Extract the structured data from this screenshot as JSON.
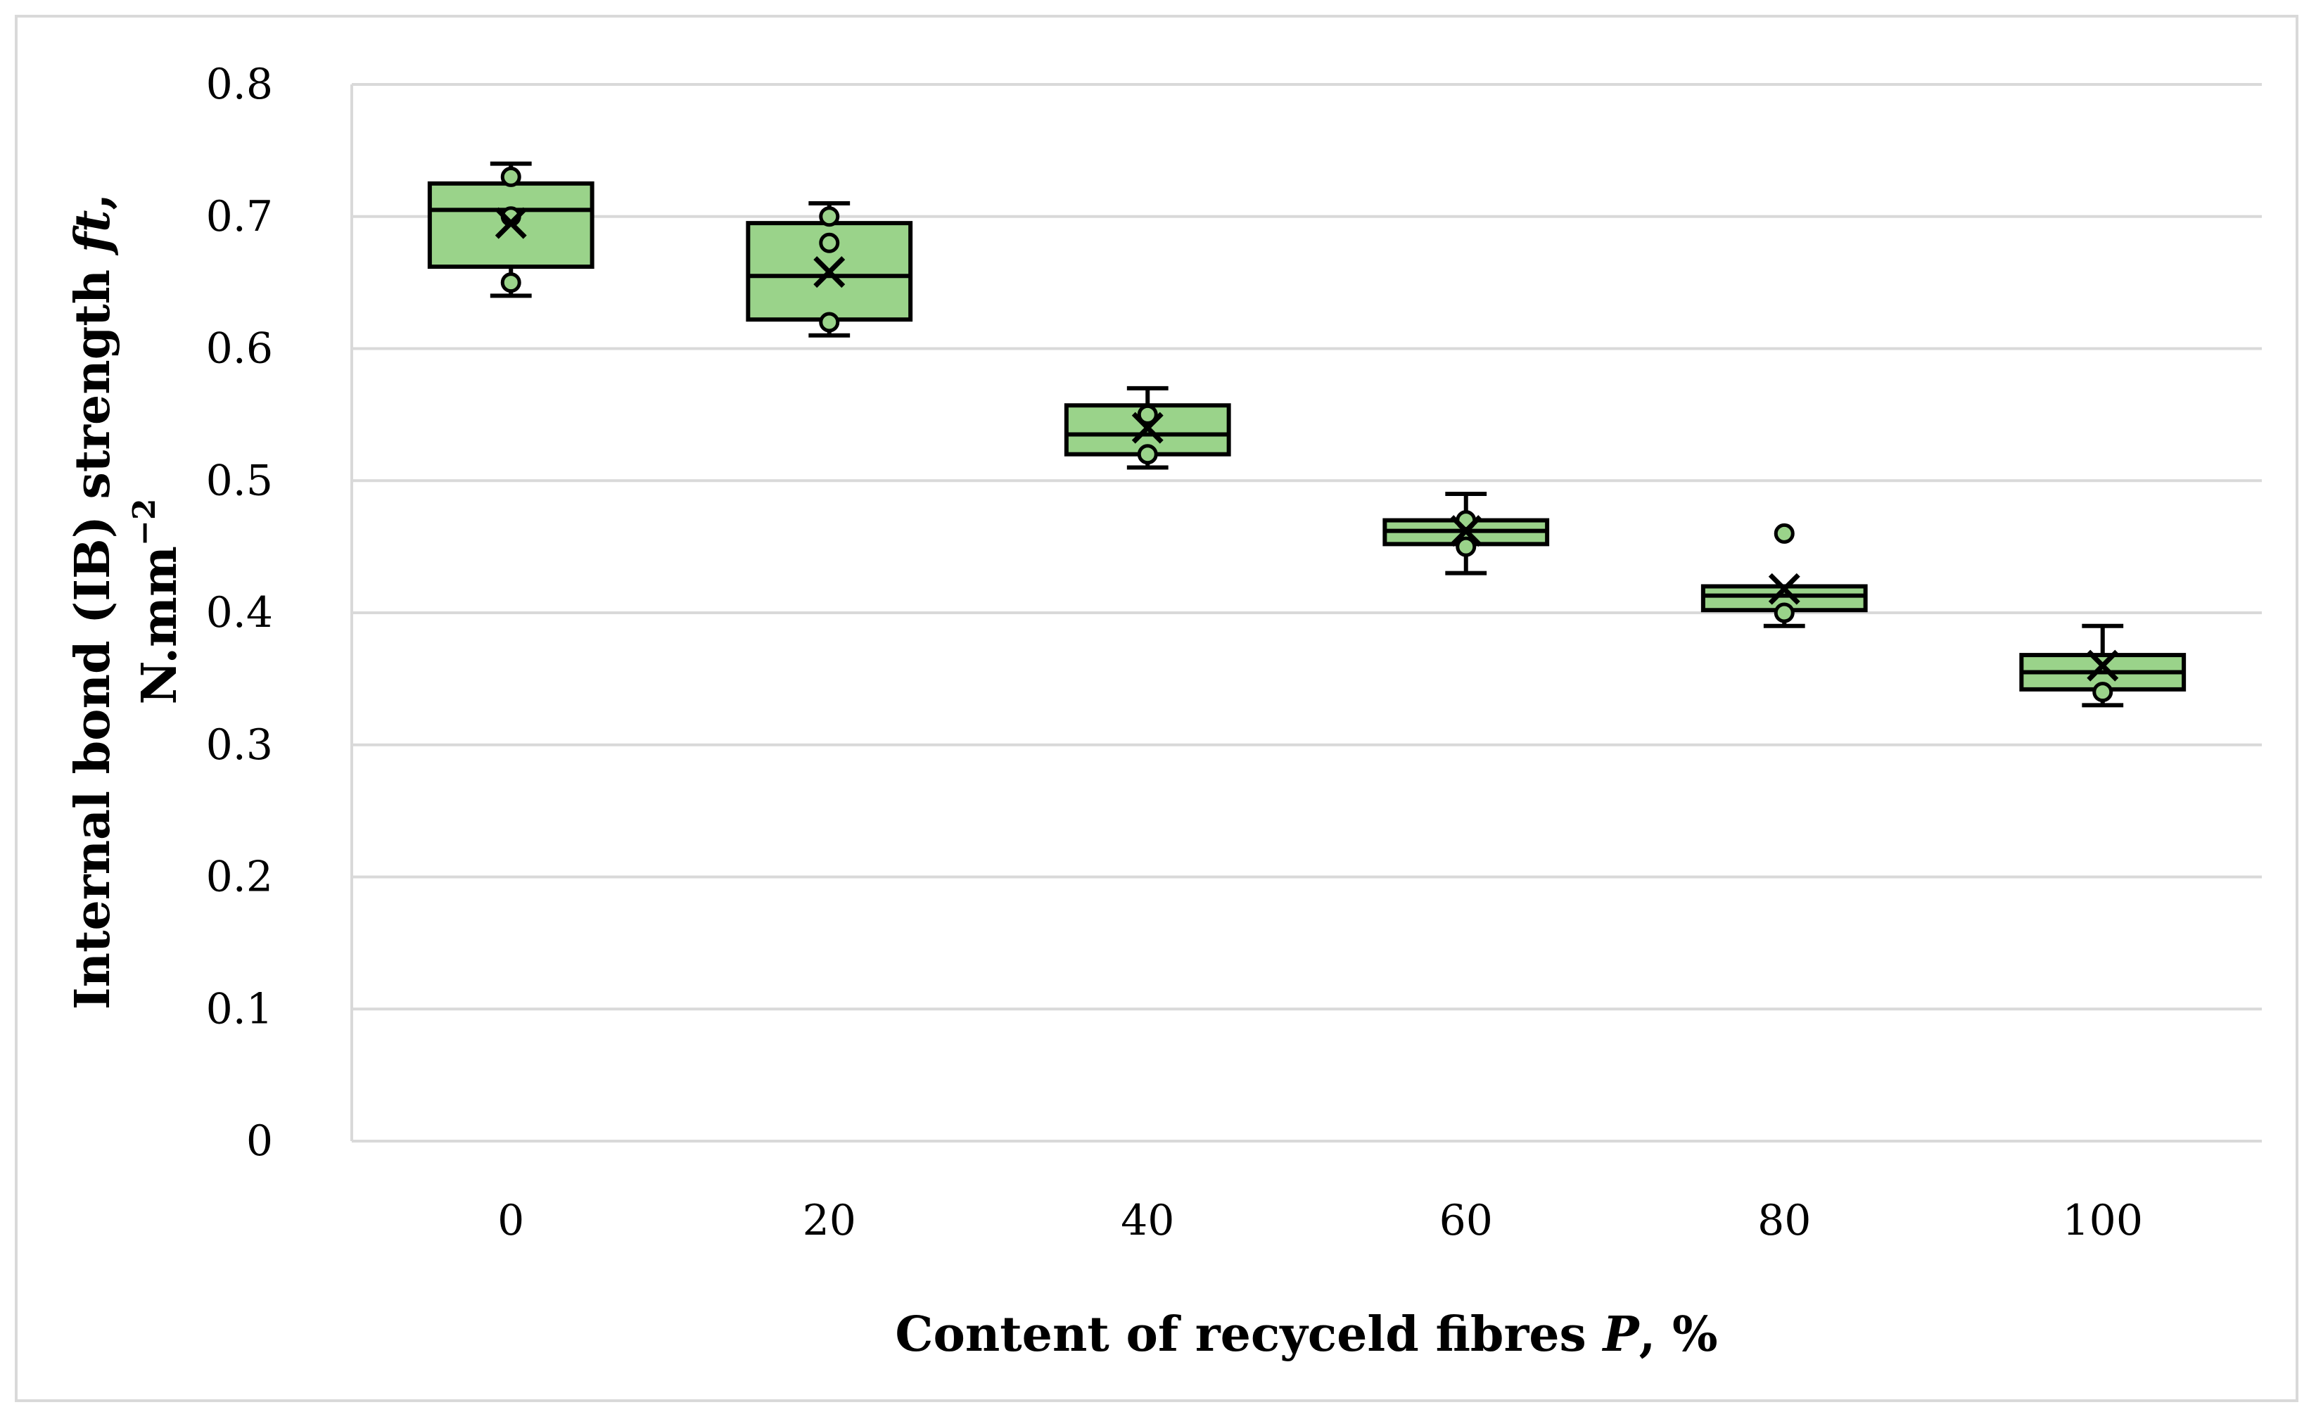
{
  "chart_data": {
    "type": "box",
    "xlabel_main": "Content of recyceld fibres ",
    "xlabel_var": "P",
    "xlabel_unit": ", %",
    "ylabel_line1_main": "Internal bond (IB) strength ",
    "ylabel_line1_var": "ft",
    "ylabel_line1_tail": ",",
    "ylabel_line2_main": "N.mm",
    "ylabel_line2_sup": "−2",
    "ylim": [
      0,
      0.8
    ],
    "yticks": [
      "0",
      "0.1",
      "0.2",
      "0.3",
      "0.4",
      "0.5",
      "0.6",
      "0.7",
      "0.8"
    ],
    "categories": [
      "0",
      "20",
      "40",
      "60",
      "80",
      "100"
    ],
    "grid": true,
    "box_fill": "#9ad38a",
    "box_stroke": "#000000",
    "boxes": [
      {
        "category": "0",
        "min": 0.64,
        "q1": 0.662,
        "median": 0.705,
        "q3": 0.725,
        "max": 0.74,
        "mean": 0.695,
        "points": [
          0.65,
          0.7,
          0.73
        ]
      },
      {
        "category": "20",
        "min": 0.61,
        "q1": 0.622,
        "median": 0.655,
        "q3": 0.695,
        "max": 0.71,
        "mean": 0.658,
        "points": [
          0.62,
          0.68,
          0.7
        ]
      },
      {
        "category": "40",
        "min": 0.51,
        "q1": 0.52,
        "median": 0.535,
        "q3": 0.557,
        "max": 0.57,
        "mean": 0.54,
        "points": [
          0.52,
          0.55
        ]
      },
      {
        "category": "60",
        "min": 0.43,
        "q1": 0.452,
        "median": 0.462,
        "q3": 0.47,
        "max": 0.49,
        "mean": 0.462,
        "points": [
          0.45,
          0.47
        ]
      },
      {
        "category": "80",
        "min": 0.39,
        "q1": 0.402,
        "median": 0.413,
        "q3": 0.42,
        "max": 0.42,
        "mean": 0.418,
        "points": [
          0.4,
          0.46
        ]
      },
      {
        "category": "100",
        "min": 0.33,
        "q1": 0.342,
        "median": 0.355,
        "q3": 0.368,
        "max": 0.39,
        "mean": 0.36,
        "points": [
          0.34
        ]
      }
    ]
  }
}
